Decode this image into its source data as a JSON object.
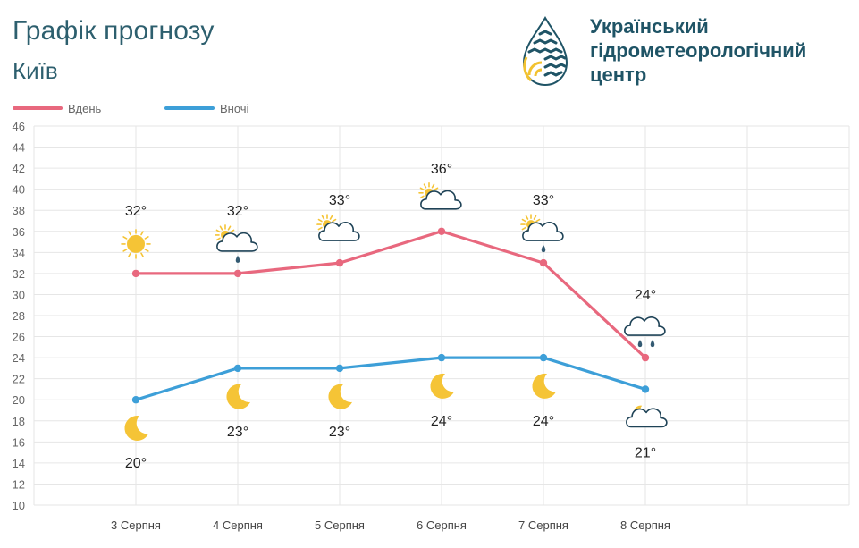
{
  "header": {
    "title": "Графік прогнозу",
    "city": "Київ",
    "org_lines": [
      "Український",
      "гідрометеорологічний",
      "центр"
    ]
  },
  "colors": {
    "day": "#e8687e",
    "night": "#3d9fd8",
    "grid": "#e6e6e6",
    "title": "#2d5f6e"
  },
  "chart_data": {
    "type": "line",
    "categories": [
      "3 Серпня",
      "4 Серпня",
      "5 Серпня",
      "6 Серпня",
      "7 Серпня",
      "8 Серпня"
    ],
    "series": [
      {
        "name": "Вдень",
        "values": [
          32,
          32,
          33,
          36,
          33,
          24
        ],
        "labels": [
          "32°",
          "32°",
          "33°",
          "36°",
          "33°",
          "24°"
        ],
        "icons": [
          "sun-icon",
          "partly-cloudy-rain-icon",
          "partly-cloudy-icon",
          "partly-cloudy-icon",
          "partly-cloudy-rain-icon",
          "cloud-rain-icon"
        ]
      },
      {
        "name": "Вночі",
        "values": [
          20,
          23,
          23,
          24,
          24,
          21
        ],
        "labels": [
          "20°",
          "23°",
          "23°",
          "24°",
          "24°",
          "21°"
        ],
        "icons": [
          "moon-icon",
          "moon-icon",
          "moon-icon",
          "moon-icon",
          "moon-icon",
          "moon-cloudy-icon"
        ]
      }
    ],
    "yticks": [
      10,
      12,
      14,
      16,
      18,
      20,
      22,
      24,
      26,
      28,
      30,
      32,
      34,
      36,
      38,
      40,
      42,
      44,
      46
    ],
    "ylim": [
      10,
      46
    ],
    "grid": true,
    "legend": "top-left"
  }
}
